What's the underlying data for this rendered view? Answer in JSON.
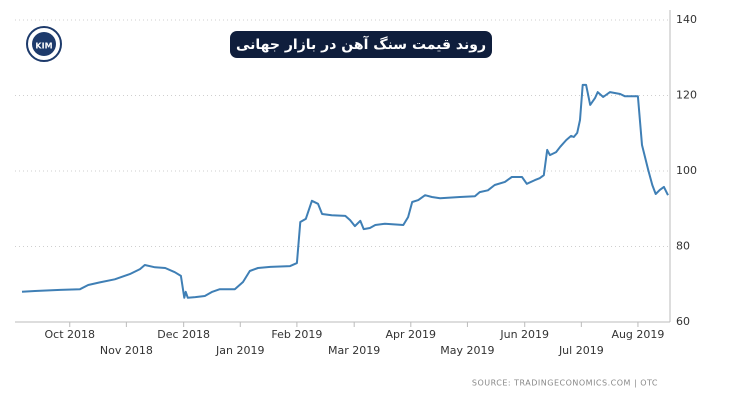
{
  "chart_data": {
    "type": "line",
    "title": "روند قیمت سنگ آهن در بازار جهانی",
    "logo_text": "KIM",
    "source": "SOURCE: TRADINGECONOMICS.COM | OTC",
    "color": "#3f7fb5",
    "grid": true,
    "xlim": [
      2018.68,
      2019.63
    ],
    "xticks": [
      {
        "value": 2018.75,
        "label": "Oct 2018"
      },
      {
        "value": 2018.833,
        "label": "Nov 2018"
      },
      {
        "value": 2018.917,
        "label": "Dec 2018"
      },
      {
        "value": 2019.0,
        "label": "Jan 2019"
      },
      {
        "value": 2019.083,
        "label": "Feb 2019"
      },
      {
        "value": 2019.167,
        "label": "Mar 2019"
      },
      {
        "value": 2019.25,
        "label": "Apr 2019"
      },
      {
        "value": 2019.333,
        "label": "May 2019"
      },
      {
        "value": 2019.417,
        "label": "Jun 2019"
      },
      {
        "value": 2019.5,
        "label": "Jul 2019"
      },
      {
        "value": 2019.583,
        "label": "Aug 2019"
      }
    ],
    "ylim": [
      60,
      140
    ],
    "yticks": [
      60,
      80,
      100,
      120,
      140
    ],
    "x": [
      2018.68,
      2018.699,
      2018.736,
      2018.765,
      2018.777,
      2018.794,
      2018.816,
      2018.838,
      2018.853,
      2018.86,
      2018.875,
      2018.89,
      2018.904,
      2018.913,
      2018.918,
      2018.92,
      2018.923,
      2018.934,
      2018.948,
      2018.959,
      2018.97,
      2018.992,
      2019.004,
      2019.014,
      2019.026,
      2019.044,
      2019.073,
      2019.083,
      2019.088,
      2019.096,
      2019.105,
      2019.114,
      2019.12,
      2019.134,
      2019.154,
      2019.161,
      2019.168,
      2019.176,
      2019.181,
      2019.19,
      2019.198,
      2019.212,
      2019.239,
      2019.246,
      2019.252,
      2019.261,
      2019.271,
      2019.281,
      2019.293,
      2019.322,
      2019.344,
      2019.351,
      2019.363,
      2019.373,
      2019.388,
      2019.398,
      2019.413,
      2019.42,
      2019.432,
      2019.439,
      2019.445,
      2019.45,
      2019.454,
      2019.463,
      2019.469,
      2019.478,
      2019.485,
      2019.489,
      2019.494,
      2019.498,
      2019.502,
      2019.507,
      2019.513,
      2019.52,
      2019.524,
      2019.532,
      2019.542,
      2019.557,
      2019.564,
      2019.583,
      2019.589,
      2019.598,
      2019.604,
      2019.609,
      2019.615,
      2019.621,
      2019.627
    ],
    "values": [
      68.0,
      68.2,
      68.5,
      68.7,
      69.8,
      70.5,
      71.3,
      72.7,
      74.0,
      75.1,
      74.5,
      74.3,
      73.2,
      72.2,
      66.4,
      68.0,
      66.4,
      66.6,
      66.9,
      68.0,
      68.7,
      68.7,
      70.6,
      73.5,
      74.3,
      74.6,
      74.8,
      75.6,
      86.5,
      87.3,
      92.1,
      91.3,
      88.6,
      88.3,
      88.1,
      87.0,
      85.4,
      86.8,
      84.6,
      84.9,
      85.7,
      86.0,
      85.7,
      87.8,
      91.8,
      92.3,
      93.6,
      93.1,
      92.8,
      93.1,
      93.3,
      94.4,
      94.9,
      96.3,
      97.1,
      98.4,
      98.4,
      96.6,
      97.6,
      98.1,
      98.9,
      105.6,
      104.2,
      105.0,
      106.4,
      108.2,
      109.3,
      109.0,
      110.1,
      113.5,
      122.8,
      122.8,
      117.5,
      119.3,
      120.9,
      119.6,
      120.9,
      120.4,
      119.8,
      119.8,
      106.9,
      100.3,
      96.3,
      93.9,
      95.0,
      95.8,
      93.6
    ]
  }
}
